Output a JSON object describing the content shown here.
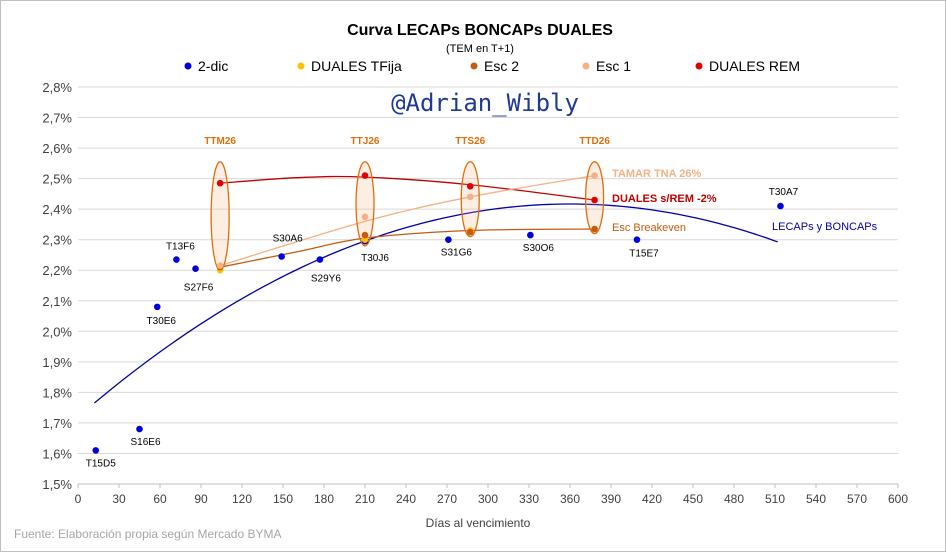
{
  "colors": {
    "series_2dic": "#0000dd",
    "tfija": "#ffc000",
    "esc2": "#c55a11",
    "esc1": "#f4b183",
    "rem": "#e00000",
    "ellipse": "#e36c09",
    "trend_blue": "#0000aa",
    "trend_red": "#c00000"
  },
  "chart_data": {
    "type": "scatter",
    "title": "Curva LECAPs BONCAPs DUALES",
    "subtitle": "(TEM en T+1)",
    "xlabel": "Días al vencimiento",
    "xlim": [
      0,
      600
    ],
    "ylim": [
      1.5,
      2.8
    ],
    "x_ticks": [
      "0",
      "30",
      "60",
      "90",
      "120",
      "150",
      "180",
      "210",
      "240",
      "270",
      "300",
      "330",
      "360",
      "390",
      "420",
      "450",
      "480",
      "510",
      "540",
      "570",
      "600"
    ],
    "y_ticks": [
      "1,5%",
      "1,6%",
      "1,7%",
      "1,8%",
      "1,9%",
      "2,0%",
      "2,1%",
      "2,2%",
      "2,3%",
      "2,4%",
      "2,5%",
      "2,6%",
      "2,7%",
      "2,8%"
    ],
    "legend": [
      "2-dic",
      "DUALES TFija",
      "Esc 2",
      "Esc 1",
      "DUALES REM"
    ],
    "legend_position": "top",
    "series": [
      {
        "name": "2-dic",
        "points": [
          {
            "label": "T15D5",
            "x": 13,
            "y": 1.61
          },
          {
            "label": "S16E6",
            "x": 45,
            "y": 1.68
          },
          {
            "label": "T30E6",
            "x": 58,
            "y": 2.08
          },
          {
            "label": "T13F6",
            "x": 72,
            "y": 2.235
          },
          {
            "label": "S27F6",
            "x": 86,
            "y": 2.205
          },
          {
            "label": "S30A6",
            "x": 149,
            "y": 2.245
          },
          {
            "label": "S29Y6",
            "x": 177,
            "y": 2.235
          },
          {
            "label": "T30J6",
            "x": 210,
            "y": 2.295
          },
          {
            "label": "S31G6",
            "x": 271,
            "y": 2.3
          },
          {
            "label": "S30O6",
            "x": 331,
            "y": 2.315
          },
          {
            "label": "T15E7",
            "x": 409,
            "y": 2.3
          },
          {
            "label": "T30A7",
            "x": 514,
            "y": 2.41
          }
        ]
      },
      {
        "name": "DUALES TFija",
        "points": [
          {
            "x": 104,
            "y": 2.2
          },
          {
            "x": 210,
            "y": 2.3
          },
          {
            "x": 287,
            "y": 2.33
          },
          {
            "x": 378,
            "y": 2.335
          }
        ]
      },
      {
        "name": "Esc 2",
        "points": [
          {
            "x": 104,
            "y": 2.21
          },
          {
            "x": 210,
            "y": 2.315
          },
          {
            "x": 287,
            "y": 2.325
          },
          {
            "x": 378,
            "y": 2.335
          }
        ]
      },
      {
        "name": "Esc 1",
        "points": [
          {
            "x": 104,
            "y": 2.215
          },
          {
            "x": 210,
            "y": 2.375
          },
          {
            "x": 287,
            "y": 2.44
          },
          {
            "x": 378,
            "y": 2.51
          }
        ]
      },
      {
        "name": "DUALES REM",
        "points": [
          {
            "x": 104,
            "y": 2.485
          },
          {
            "x": 210,
            "y": 2.51
          },
          {
            "x": 287,
            "y": 2.475
          },
          {
            "x": 378,
            "y": 2.43
          }
        ]
      }
    ],
    "trendlines": [
      {
        "label": "LECAPs y BONCAPs",
        "color_key": "trend_blue",
        "from_x": 12,
        "to_x": 512,
        "a": -5.38e-06,
        "b": 0.003874,
        "c": 1.7195
      },
      {
        "label": "DUALES s/REM -2%",
        "color_key": "trend_red",
        "points": [
          {
            "x": 104,
            "y": 2.485
          },
          {
            "x": 160,
            "y": 2.503
          },
          {
            "x": 210,
            "y": 2.505
          },
          {
            "x": 287,
            "y": 2.48
          },
          {
            "x": 378,
            "y": 2.43
          }
        ]
      },
      {
        "label": "TAMAR TNA 26%",
        "color_key": "esc1",
        "points": [
          {
            "x": 104,
            "y": 2.215
          },
          {
            "x": 210,
            "y": 2.36
          },
          {
            "x": 287,
            "y": 2.44
          },
          {
            "x": 378,
            "y": 2.51
          }
        ]
      },
      {
        "label": "Esc Breakeven",
        "color_key": "esc2",
        "points": [
          {
            "x": 104,
            "y": 2.21
          },
          {
            "x": 160,
            "y": 2.26
          },
          {
            "x": 210,
            "y": 2.305
          },
          {
            "x": 287,
            "y": 2.33
          },
          {
            "x": 378,
            "y": 2.335
          }
        ]
      }
    ],
    "duales_groups": [
      {
        "label": "TTM26",
        "x": 104,
        "y_low": 2.2,
        "y_high": 2.555
      },
      {
        "label": "TTJ26",
        "x": 210,
        "y_low": 2.28,
        "y_high": 2.555
      },
      {
        "label": "TTS26",
        "x": 287,
        "y_low": 2.31,
        "y_high": 2.555
      },
      {
        "label": "TTD26",
        "x": 378,
        "y_low": 2.32,
        "y_high": 2.555
      }
    ]
  },
  "watermark": "@Adrian_Wibly",
  "source": "Fuente: Elaboración propia según Mercado BYMA"
}
